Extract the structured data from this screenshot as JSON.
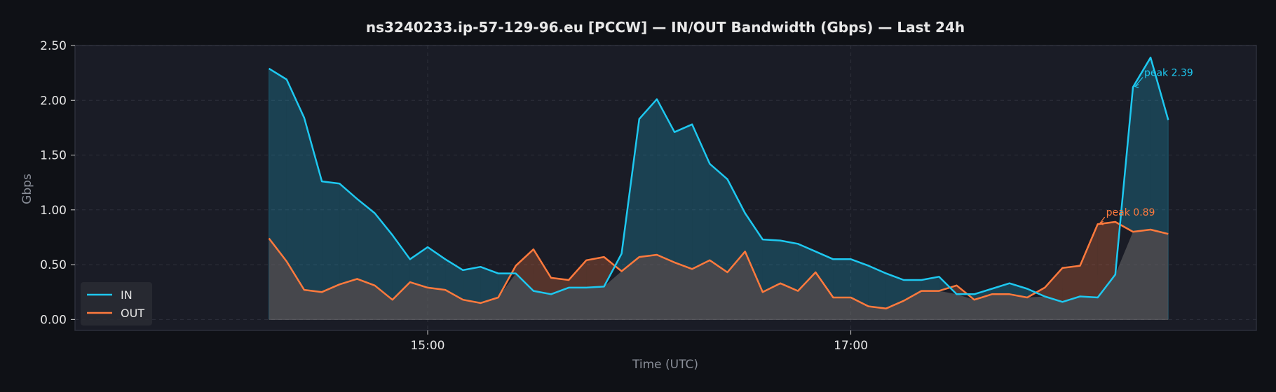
{
  "chart_data": {
    "type": "area",
    "title": "ns3240233.ip-57-129-96.eu [PCCW] — IN/OUT Bandwidth (Gbps) — Last 24h",
    "xlabel": "Time (UTC)",
    "ylabel": "Gbps",
    "ylim": [
      -0.1,
      2.5
    ],
    "x_range_minutes": [
      800,
      1135
    ],
    "xticks": [
      {
        "minute": 900,
        "label": "15:00"
      },
      {
        "minute": 1020,
        "label": "17:00"
      }
    ],
    "yticks": [
      "0.00",
      "0.50",
      "1.00",
      "1.50",
      "2.00",
      "2.50"
    ],
    "grid": true,
    "legend_position": "lower-left",
    "x_minutes": [
      855,
      860,
      865,
      870,
      875,
      880,
      885,
      890,
      895,
      900,
      905,
      910,
      915,
      920,
      925,
      930,
      935,
      940,
      945,
      950,
      955,
      960,
      965,
      970,
      975,
      980,
      985,
      990,
      995,
      1000,
      1005,
      1010,
      1015,
      1020,
      1025,
      1030,
      1035,
      1040,
      1045,
      1050,
      1055,
      1060,
      1065,
      1070,
      1075,
      1080,
      1085,
      1090,
      1095,
      1100,
      1105,
      1110
    ],
    "series": [
      {
        "name": "IN",
        "color": "#1ec8f0",
        "values": [
          2.29,
          2.19,
          1.84,
          1.26,
          1.24,
          1.1,
          0.97,
          0.77,
          0.55,
          0.66,
          0.55,
          0.45,
          0.48,
          0.42,
          0.42,
          0.26,
          0.23,
          0.29,
          0.29,
          0.3,
          0.6,
          1.83,
          2.01,
          1.71,
          1.78,
          1.42,
          1.28,
          0.97,
          0.73,
          0.72,
          0.69,
          0.62,
          0.55,
          0.55,
          0.49,
          0.42,
          0.36,
          0.36,
          0.39,
          0.23,
          0.23,
          0.28,
          0.33,
          0.28,
          0.21,
          0.16,
          0.21,
          0.2,
          0.41,
          2.12,
          2.39,
          1.82
        ]
      },
      {
        "name": "OUT",
        "color": "#ff7a3d",
        "values": [
          0.74,
          0.53,
          0.27,
          0.25,
          0.32,
          0.37,
          0.31,
          0.18,
          0.34,
          0.29,
          0.27,
          0.18,
          0.15,
          0.2,
          0.49,
          0.64,
          0.38,
          0.36,
          0.54,
          0.57,
          0.44,
          0.57,
          0.59,
          0.52,
          0.46,
          0.54,
          0.43,
          0.62,
          0.25,
          0.33,
          0.26,
          0.43,
          0.2,
          0.2,
          0.12,
          0.1,
          0.17,
          0.26,
          0.26,
          0.31,
          0.18,
          0.23,
          0.23,
          0.2,
          0.29,
          0.47,
          0.49,
          0.87,
          0.89,
          0.8,
          0.82,
          0.78
        ]
      }
    ],
    "annotations": [
      {
        "series": "IN",
        "text": "peak 2.39",
        "index": 49
      },
      {
        "series": "OUT",
        "text": "peak 0.89",
        "index": 47
      }
    ]
  }
}
